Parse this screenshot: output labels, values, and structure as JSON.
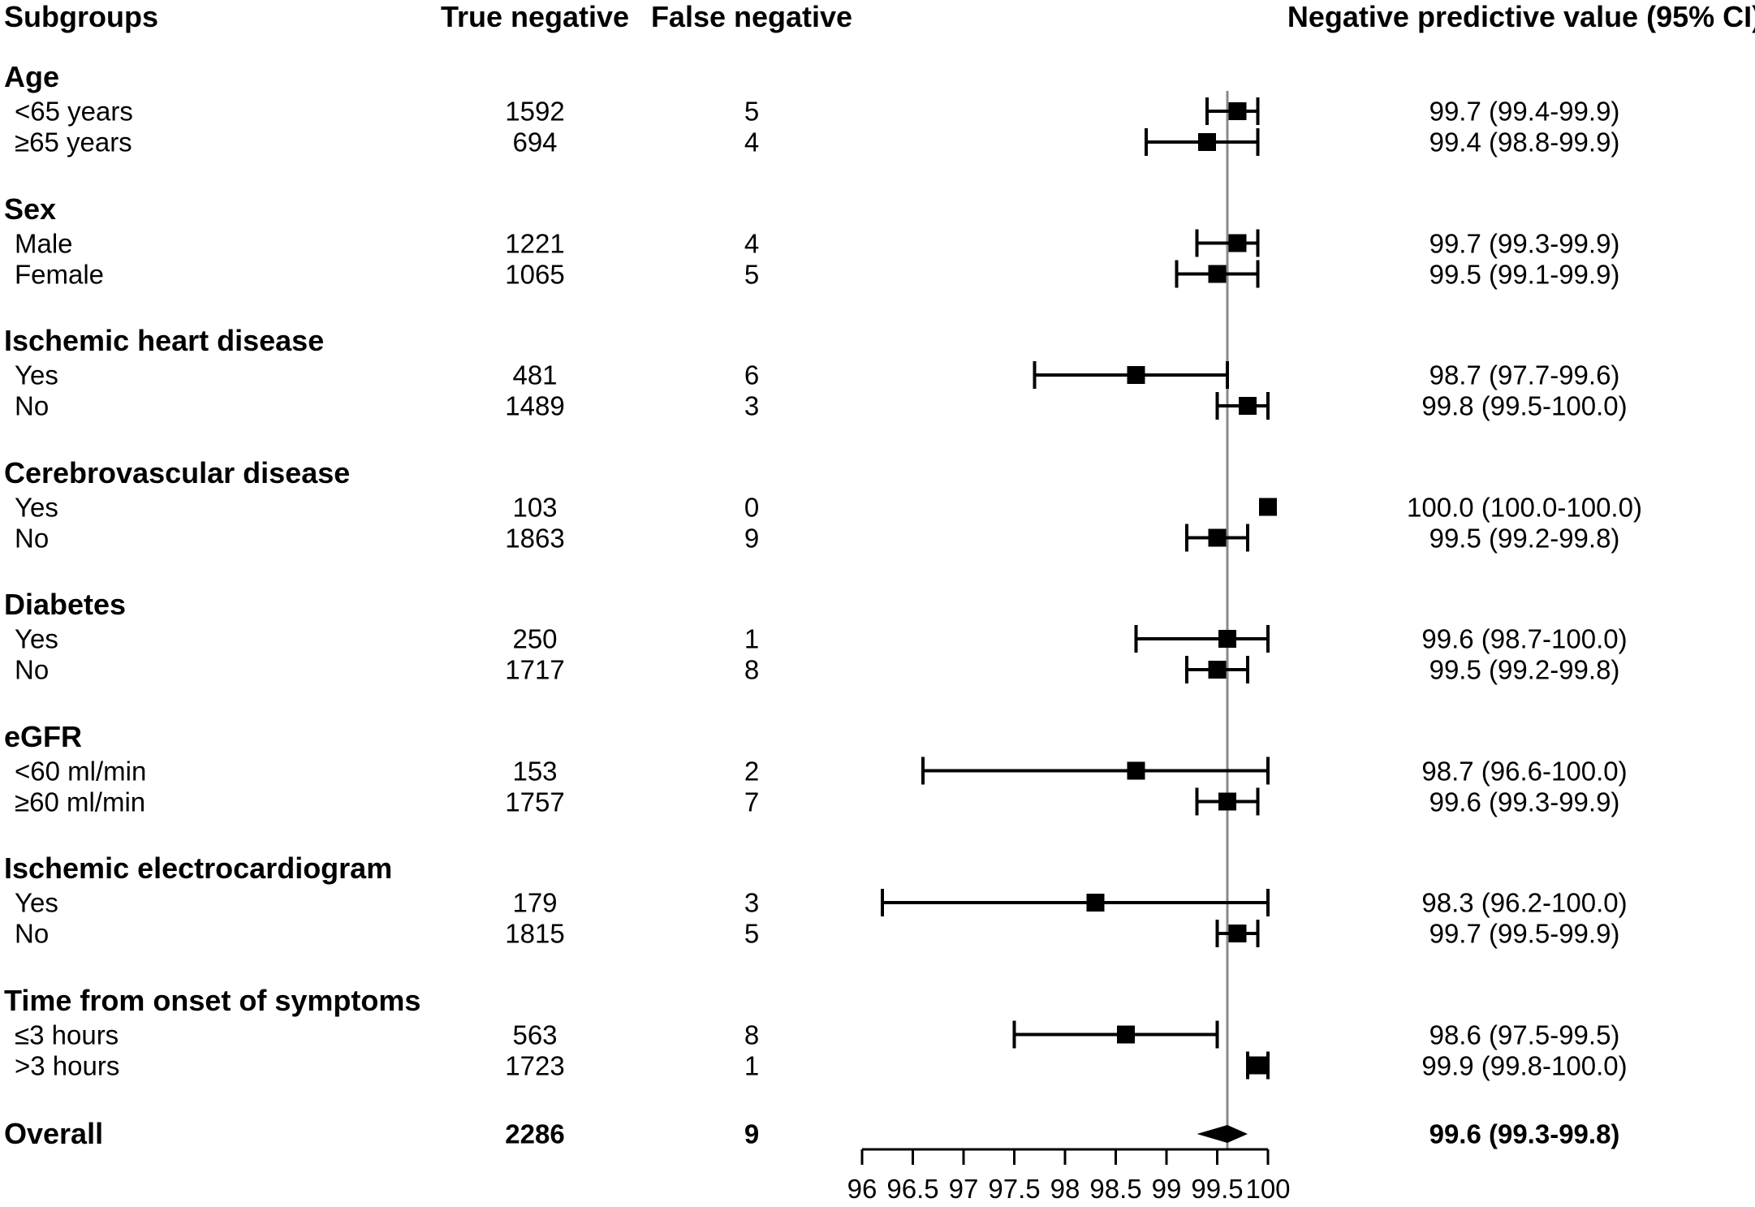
{
  "figure": {
    "columns": {
      "subgroups": "Subgroups",
      "true_negative": "True negative",
      "false_negative": "False negative",
      "npv": "Negative predictive value (95% CI)"
    }
  },
  "chart_data": {
    "type": "forest",
    "x_axis": {
      "min": 96,
      "max": 100,
      "ticks": [
        96,
        96.5,
        97,
        97.5,
        98,
        98.5,
        99,
        99.5,
        100
      ],
      "tick_labels": [
        "96",
        "96.5",
        "97",
        "97.5",
        "98",
        "98.5",
        "99",
        "99.5",
        "100"
      ]
    },
    "reference_line": 99.6,
    "groups": [
      {
        "label": "Age",
        "rows": [
          {
            "label": "<65 years",
            "true_negative": "1592",
            "false_negative": "5",
            "npv": 99.7,
            "ci_low": 99.4,
            "ci_high": 99.9,
            "npv_text": "99.7 (99.4-99.9)"
          },
          {
            "label": "≥65 years",
            "true_negative": "694",
            "false_negative": "4",
            "npv": 99.4,
            "ci_low": 98.8,
            "ci_high": 99.9,
            "npv_text": "99.4 (98.8-99.9)"
          }
        ]
      },
      {
        "label": "Sex",
        "rows": [
          {
            "label": "Male",
            "true_negative": "1221",
            "false_negative": "4",
            "npv": 99.7,
            "ci_low": 99.3,
            "ci_high": 99.9,
            "npv_text": "99.7 (99.3-99.9)"
          },
          {
            "label": "Female",
            "true_negative": "1065",
            "false_negative": "5",
            "npv": 99.5,
            "ci_low": 99.1,
            "ci_high": 99.9,
            "npv_text": "99.5 (99.1-99.9)"
          }
        ]
      },
      {
        "label": "Ischemic heart disease",
        "rows": [
          {
            "label": "Yes",
            "true_negative": "481",
            "false_negative": "6",
            "npv": 98.7,
            "ci_low": 97.7,
            "ci_high": 99.6,
            "npv_text": "98.7 (97.7-99.6)"
          },
          {
            "label": "No",
            "true_negative": "1489",
            "false_negative": "3",
            "npv": 99.8,
            "ci_low": 99.5,
            "ci_high": 100.0,
            "npv_text": "99.8 (99.5-100.0)"
          }
        ]
      },
      {
        "label": "Cerebrovascular disease",
        "rows": [
          {
            "label": "Yes",
            "true_negative": "103",
            "false_negative": "0",
            "npv": 100.0,
            "ci_low": 100.0,
            "ci_high": 100.0,
            "npv_text": "100.0 (100.0-100.0)"
          },
          {
            "label": "No",
            "true_negative": "1863",
            "false_negative": "9",
            "npv": 99.5,
            "ci_low": 99.2,
            "ci_high": 99.8,
            "npv_text": "99.5 (99.2-99.8)"
          }
        ]
      },
      {
        "label": "Diabetes",
        "rows": [
          {
            "label": "Yes",
            "true_negative": "250",
            "false_negative": "1",
            "npv": 99.6,
            "ci_low": 98.7,
            "ci_high": 100.0,
            "npv_text": "99.6 (98.7-100.0)"
          },
          {
            "label": "No",
            "true_negative": "1717",
            "false_negative": "8",
            "npv": 99.5,
            "ci_low": 99.2,
            "ci_high": 99.8,
            "npv_text": "99.5 (99.2-99.8)"
          }
        ]
      },
      {
        "label": "eGFR",
        "rows": [
          {
            "label": "<60 ml/min",
            "true_negative": "153",
            "false_negative": "2",
            "npv": 98.7,
            "ci_low": 96.6,
            "ci_high": 100.0,
            "npv_text": "98.7 (96.6-100.0)"
          },
          {
            "label": "≥60 ml/min",
            "true_negative": "1757",
            "false_negative": "7",
            "npv": 99.6,
            "ci_low": 99.3,
            "ci_high": 99.9,
            "npv_text": "99.6 (99.3-99.9)"
          }
        ]
      },
      {
        "label": "Ischemic electrocardiogram",
        "rows": [
          {
            "label": "Yes",
            "true_negative": "179",
            "false_negative": "3",
            "npv": 98.3,
            "ci_low": 96.2,
            "ci_high": 100.0,
            "npv_text": "98.3 (96.2-100.0)"
          },
          {
            "label": "No",
            "true_negative": "1815",
            "false_negative": "5",
            "npv": 99.7,
            "ci_low": 99.5,
            "ci_high": 99.9,
            "npv_text": "99.7 (99.5-99.9)"
          }
        ]
      },
      {
        "label": "Time from onset of symptoms",
        "rows": [
          {
            "label": "≤3 hours",
            "true_negative": "563",
            "false_negative": "8",
            "npv": 98.6,
            "ci_low": 97.5,
            "ci_high": 99.5,
            "npv_text": "98.6 (97.5-99.5)"
          },
          {
            "label": ">3 hours",
            "true_negative": "1723",
            "false_negative": "1",
            "npv": 99.9,
            "ci_low": 99.8,
            "ci_high": 100.0,
            "npv_text": "99.9 (99.8-100.0)"
          }
        ]
      }
    ],
    "overall": {
      "label": "Overall",
      "true_negative": "2286",
      "false_negative": "9",
      "npv": 99.6,
      "ci_low": 99.3,
      "ci_high": 99.8,
      "npv_text": "99.6 (99.3-99.8)"
    }
  },
  "colors": {
    "background": "#ffffff",
    "text": "#000000",
    "marker": "#000000",
    "axis": "#000000",
    "reference_line": "#8a8a8a"
  }
}
